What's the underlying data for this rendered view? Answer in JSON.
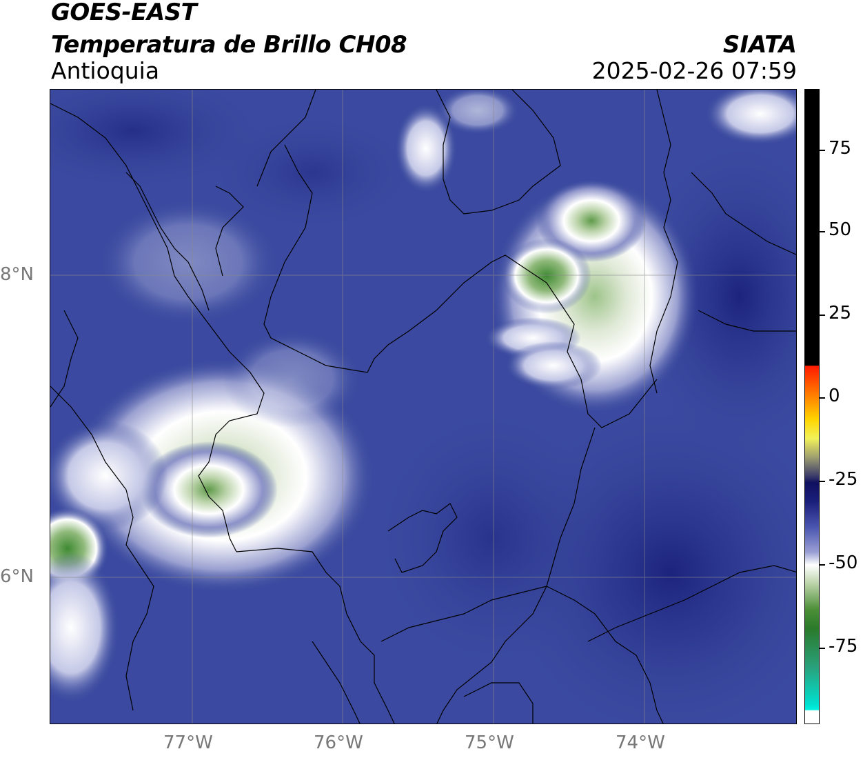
{
  "header": {
    "satellite": "GOES-EAST",
    "product": "Temperatura de Brillo CH08",
    "region": "Antioquia",
    "organization": "SIATA",
    "timestamp": "2025-02-26 07:59"
  },
  "map": {
    "lon_ticks": [
      "77°W",
      "76°W",
      "75°W",
      "74°W"
    ],
    "lat_ticks": [
      "8°N",
      "6°N"
    ],
    "background_color": "#3a4a9e"
  },
  "colorbar": {
    "tick_labels": [
      "75",
      "50",
      "25",
      "0",
      "-25",
      "-50",
      "-75"
    ],
    "colors": {
      "top": "#000000",
      "warm": "#ff2a00",
      "navy": "#1a1f7a",
      "white": "#ffffff",
      "green": "#3a8a2a",
      "cyan": "#00e0d0"
    }
  }
}
